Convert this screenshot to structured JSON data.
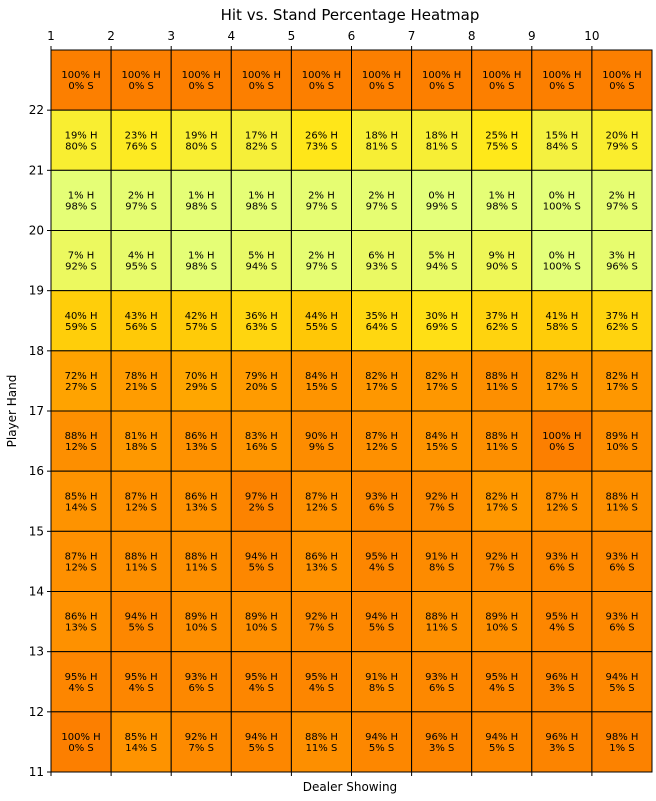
{
  "chart_data": {
    "type": "heatmap",
    "title": "Hit vs. Stand Percentage Heatmap",
    "xlabel": "Dealer Showing",
    "ylabel": "Player Hand",
    "x_ticks": [
      "1",
      "2",
      "3",
      "4",
      "5",
      "6",
      "7",
      "8",
      "9",
      "10"
    ],
    "y_ticks": [
      "22",
      "21",
      "20",
      "19",
      "18",
      "17",
      "16",
      "15",
      "14",
      "13",
      "12",
      "11"
    ],
    "x_range": [
      1,
      11
    ],
    "y_range": [
      11,
      23
    ],
    "colormap": "Wistia",
    "value_range": [
      0,
      100
    ],
    "rows": [
      {
        "cells": [
          {
            "hit": 100,
            "stand": 0,
            "hit_label": "100% H",
            "stand_label": "0% S"
          },
          {
            "hit": 100,
            "stand": 0,
            "hit_label": "100% H",
            "stand_label": "0% S"
          },
          {
            "hit": 100,
            "stand": 0,
            "hit_label": "100% H",
            "stand_label": "0% S"
          },
          {
            "hit": 100,
            "stand": 0,
            "hit_label": "100% H",
            "stand_label": "0% S"
          },
          {
            "hit": 100,
            "stand": 0,
            "hit_label": "100% H",
            "stand_label": "0% S"
          },
          {
            "hit": 100,
            "stand": 0,
            "hit_label": "100% H",
            "stand_label": "0% S"
          },
          {
            "hit": 100,
            "stand": 0,
            "hit_label": "100% H",
            "stand_label": "0% S"
          },
          {
            "hit": 100,
            "stand": 0,
            "hit_label": "100% H",
            "stand_label": "0% S"
          },
          {
            "hit": 100,
            "stand": 0,
            "hit_label": "100% H",
            "stand_label": "0% S"
          },
          {
            "hit": 100,
            "stand": 0,
            "hit_label": "100% H",
            "stand_label": "0% S"
          }
        ]
      },
      {
        "cells": [
          {
            "hit": 19,
            "stand": 80,
            "hit_label": "19% H",
            "stand_label": "80% S"
          },
          {
            "hit": 23,
            "stand": 76,
            "hit_label": "23% H",
            "stand_label": "76% S"
          },
          {
            "hit": 19,
            "stand": 80,
            "hit_label": "19% H",
            "stand_label": "80% S"
          },
          {
            "hit": 17,
            "stand": 82,
            "hit_label": "17% H",
            "stand_label": "82% S"
          },
          {
            "hit": 26,
            "stand": 73,
            "hit_label": "26% H",
            "stand_label": "73% S"
          },
          {
            "hit": 18,
            "stand": 81,
            "hit_label": "18% H",
            "stand_label": "81% S"
          },
          {
            "hit": 18,
            "stand": 81,
            "hit_label": "18% H",
            "stand_label": "81% S"
          },
          {
            "hit": 25,
            "stand": 75,
            "hit_label": "25% H",
            "stand_label": "75% S"
          },
          {
            "hit": 15,
            "stand": 84,
            "hit_label": "15% H",
            "stand_label": "84% S"
          },
          {
            "hit": 20,
            "stand": 79,
            "hit_label": "20% H",
            "stand_label": "79% S"
          }
        ]
      },
      {
        "cells": [
          {
            "hit": 1,
            "stand": 98,
            "hit_label": "1% H",
            "stand_label": "98% S"
          },
          {
            "hit": 2,
            "stand": 97,
            "hit_label": "2% H",
            "stand_label": "97% S"
          },
          {
            "hit": 1,
            "stand": 98,
            "hit_label": "1% H",
            "stand_label": "98% S"
          },
          {
            "hit": 1,
            "stand": 98,
            "hit_label": "1% H",
            "stand_label": "98% S"
          },
          {
            "hit": 2,
            "stand": 97,
            "hit_label": "2% H",
            "stand_label": "97% S"
          },
          {
            "hit": 2,
            "stand": 97,
            "hit_label": "2% H",
            "stand_label": "97% S"
          },
          {
            "hit": 0,
            "stand": 99,
            "hit_label": "0% H",
            "stand_label": "99% S"
          },
          {
            "hit": 1,
            "stand": 98,
            "hit_label": "1% H",
            "stand_label": "98% S"
          },
          {
            "hit": 0,
            "stand": 100,
            "hit_label": "0% H",
            "stand_label": "100% S"
          },
          {
            "hit": 2,
            "stand": 97,
            "hit_label": "2% H",
            "stand_label": "97% S"
          }
        ]
      },
      {
        "cells": [
          {
            "hit": 7,
            "stand": 92,
            "hit_label": "7% H",
            "stand_label": "92% S"
          },
          {
            "hit": 4,
            "stand": 95,
            "hit_label": "4% H",
            "stand_label": "95% S"
          },
          {
            "hit": 1,
            "stand": 98,
            "hit_label": "1% H",
            "stand_label": "98% S"
          },
          {
            "hit": 5,
            "stand": 94,
            "hit_label": "5% H",
            "stand_label": "94% S"
          },
          {
            "hit": 2,
            "stand": 97,
            "hit_label": "2% H",
            "stand_label": "97% S"
          },
          {
            "hit": 6,
            "stand": 93,
            "hit_label": "6% H",
            "stand_label": "93% S"
          },
          {
            "hit": 5,
            "stand": 94,
            "hit_label": "5% H",
            "stand_label": "94% S"
          },
          {
            "hit": 9,
            "stand": 90,
            "hit_label": "9% H",
            "stand_label": "90% S"
          },
          {
            "hit": 0,
            "stand": 100,
            "hit_label": "0% H",
            "stand_label": "100% S"
          },
          {
            "hit": 3,
            "stand": 96,
            "hit_label": "3% H",
            "stand_label": "96% S"
          }
        ]
      },
      {
        "cells": [
          {
            "hit": 40,
            "stand": 59,
            "hit_label": "40% H",
            "stand_label": "59% S"
          },
          {
            "hit": 43,
            "stand": 56,
            "hit_label": "43% H",
            "stand_label": "56% S"
          },
          {
            "hit": 42,
            "stand": 57,
            "hit_label": "42% H",
            "stand_label": "57% S"
          },
          {
            "hit": 36,
            "stand": 63,
            "hit_label": "36% H",
            "stand_label": "63% S"
          },
          {
            "hit": 44,
            "stand": 55,
            "hit_label": "44% H",
            "stand_label": "55% S"
          },
          {
            "hit": 35,
            "stand": 64,
            "hit_label": "35% H",
            "stand_label": "64% S"
          },
          {
            "hit": 30,
            "stand": 69,
            "hit_label": "30% H",
            "stand_label": "69% S"
          },
          {
            "hit": 37,
            "stand": 62,
            "hit_label": "37% H",
            "stand_label": "62% S"
          },
          {
            "hit": 41,
            "stand": 58,
            "hit_label": "41% H",
            "stand_label": "58% S"
          },
          {
            "hit": 37,
            "stand": 62,
            "hit_label": "37% H",
            "stand_label": "62% S"
          }
        ]
      },
      {
        "cells": [
          {
            "hit": 72,
            "stand": 27,
            "hit_label": "72% H",
            "stand_label": "27% S"
          },
          {
            "hit": 78,
            "stand": 21,
            "hit_label": "78% H",
            "stand_label": "21% S"
          },
          {
            "hit": 70,
            "stand": 29,
            "hit_label": "70% H",
            "stand_label": "29% S"
          },
          {
            "hit": 79,
            "stand": 20,
            "hit_label": "79% H",
            "stand_label": "20% S"
          },
          {
            "hit": 84,
            "stand": 15,
            "hit_label": "84% H",
            "stand_label": "15% S"
          },
          {
            "hit": 82,
            "stand": 17,
            "hit_label": "82% H",
            "stand_label": "17% S"
          },
          {
            "hit": 82,
            "stand": 17,
            "hit_label": "82% H",
            "stand_label": "17% S"
          },
          {
            "hit": 88,
            "stand": 11,
            "hit_label": "88% H",
            "stand_label": "11% S"
          },
          {
            "hit": 82,
            "stand": 17,
            "hit_label": "82% H",
            "stand_label": "17% S"
          },
          {
            "hit": 82,
            "stand": 17,
            "hit_label": "82% H",
            "stand_label": "17% S"
          }
        ]
      },
      {
        "cells": [
          {
            "hit": 88,
            "stand": 12,
            "hit_label": "88% H",
            "stand_label": "12% S"
          },
          {
            "hit": 81,
            "stand": 18,
            "hit_label": "81% H",
            "stand_label": "18% S"
          },
          {
            "hit": 86,
            "stand": 13,
            "hit_label": "86% H",
            "stand_label": "13% S"
          },
          {
            "hit": 83,
            "stand": 16,
            "hit_label": "83% H",
            "stand_label": "16% S"
          },
          {
            "hit": 90,
            "stand": 9,
            "hit_label": "90% H",
            "stand_label": "9% S"
          },
          {
            "hit": 87,
            "stand": 12,
            "hit_label": "87% H",
            "stand_label": "12% S"
          },
          {
            "hit": 84,
            "stand": 15,
            "hit_label": "84% H",
            "stand_label": "15% S"
          },
          {
            "hit": 88,
            "stand": 11,
            "hit_label": "88% H",
            "stand_label": "11% S"
          },
          {
            "hit": 100,
            "stand": 0,
            "hit_label": "100% H",
            "stand_label": "0% S"
          },
          {
            "hit": 89,
            "stand": 10,
            "hit_label": "89% H",
            "stand_label": "10% S"
          }
        ]
      },
      {
        "cells": [
          {
            "hit": 85,
            "stand": 14,
            "hit_label": "85% H",
            "stand_label": "14% S"
          },
          {
            "hit": 87,
            "stand": 12,
            "hit_label": "87% H",
            "stand_label": "12% S"
          },
          {
            "hit": 86,
            "stand": 13,
            "hit_label": "86% H",
            "stand_label": "13% S"
          },
          {
            "hit": 97,
            "stand": 2,
            "hit_label": "97% H",
            "stand_label": "2% S"
          },
          {
            "hit": 87,
            "stand": 12,
            "hit_label": "87% H",
            "stand_label": "12% S"
          },
          {
            "hit": 93,
            "stand": 6,
            "hit_label": "93% H",
            "stand_label": "6% S"
          },
          {
            "hit": 92,
            "stand": 7,
            "hit_label": "92% H",
            "stand_label": "7% S"
          },
          {
            "hit": 82,
            "stand": 17,
            "hit_label": "82% H",
            "stand_label": "17% S"
          },
          {
            "hit": 87,
            "stand": 12,
            "hit_label": "87% H",
            "stand_label": "12% S"
          },
          {
            "hit": 88,
            "stand": 11,
            "hit_label": "88% H",
            "stand_label": "11% S"
          }
        ]
      },
      {
        "cells": [
          {
            "hit": 87,
            "stand": 12,
            "hit_label": "87% H",
            "stand_label": "12% S"
          },
          {
            "hit": 88,
            "stand": 11,
            "hit_label": "88% H",
            "stand_label": "11% S"
          },
          {
            "hit": 88,
            "stand": 11,
            "hit_label": "88% H",
            "stand_label": "11% S"
          },
          {
            "hit": 94,
            "stand": 5,
            "hit_label": "94% H",
            "stand_label": "5% S"
          },
          {
            "hit": 86,
            "stand": 13,
            "hit_label": "86% H",
            "stand_label": "13% S"
          },
          {
            "hit": 95,
            "stand": 4,
            "hit_label": "95% H",
            "stand_label": "4% S"
          },
          {
            "hit": 91,
            "stand": 8,
            "hit_label": "91% H",
            "stand_label": "8% S"
          },
          {
            "hit": 92,
            "stand": 7,
            "hit_label": "92% H",
            "stand_label": "7% S"
          },
          {
            "hit": 93,
            "stand": 6,
            "hit_label": "93% H",
            "stand_label": "6% S"
          },
          {
            "hit": 93,
            "stand": 6,
            "hit_label": "93% H",
            "stand_label": "6% S"
          }
        ]
      },
      {
        "cells": [
          {
            "hit": 86,
            "stand": 13,
            "hit_label": "86% H",
            "stand_label": "13% S"
          },
          {
            "hit": 94,
            "stand": 5,
            "hit_label": "94% H",
            "stand_label": "5% S"
          },
          {
            "hit": 89,
            "stand": 10,
            "hit_label": "89% H",
            "stand_label": "10% S"
          },
          {
            "hit": 89,
            "stand": 10,
            "hit_label": "89% H",
            "stand_label": "10% S"
          },
          {
            "hit": 92,
            "stand": 7,
            "hit_label": "92% H",
            "stand_label": "7% S"
          },
          {
            "hit": 94,
            "stand": 5,
            "hit_label": "94% H",
            "stand_label": "5% S"
          },
          {
            "hit": 88,
            "stand": 11,
            "hit_label": "88% H",
            "stand_label": "11% S"
          },
          {
            "hit": 89,
            "stand": 10,
            "hit_label": "89% H",
            "stand_label": "10% S"
          },
          {
            "hit": 95,
            "stand": 4,
            "hit_label": "95% H",
            "stand_label": "4% S"
          },
          {
            "hit": 93,
            "stand": 6,
            "hit_label": "93% H",
            "stand_label": "6% S"
          }
        ]
      },
      {
        "cells": [
          {
            "hit": 95,
            "stand": 4,
            "hit_label": "95% H",
            "stand_label": "4% S"
          },
          {
            "hit": 95,
            "stand": 4,
            "hit_label": "95% H",
            "stand_label": "4% S"
          },
          {
            "hit": 93,
            "stand": 6,
            "hit_label": "93% H",
            "stand_label": "6% S"
          },
          {
            "hit": 95,
            "stand": 4,
            "hit_label": "95% H",
            "stand_label": "4% S"
          },
          {
            "hit": 95,
            "stand": 4,
            "hit_label": "95% H",
            "stand_label": "4% S"
          },
          {
            "hit": 91,
            "stand": 8,
            "hit_label": "91% H",
            "stand_label": "8% S"
          },
          {
            "hit": 93,
            "stand": 6,
            "hit_label": "93% H",
            "stand_label": "6% S"
          },
          {
            "hit": 95,
            "stand": 4,
            "hit_label": "95% H",
            "stand_label": "4% S"
          },
          {
            "hit": 96,
            "stand": 3,
            "hit_label": "96% H",
            "stand_label": "3% S"
          },
          {
            "hit": 94,
            "stand": 5,
            "hit_label": "94% H",
            "stand_label": "5% S"
          }
        ]
      },
      {
        "cells": [
          {
            "hit": 100,
            "stand": 0,
            "hit_label": "100% H",
            "stand_label": "0% S"
          },
          {
            "hit": 85,
            "stand": 14,
            "hit_label": "85% H",
            "stand_label": "14% S"
          },
          {
            "hit": 92,
            "stand": 7,
            "hit_label": "92% H",
            "stand_label": "7% S"
          },
          {
            "hit": 94,
            "stand": 5,
            "hit_label": "94% H",
            "stand_label": "5% S"
          },
          {
            "hit": 88,
            "stand": 11,
            "hit_label": "88% H",
            "stand_label": "11% S"
          },
          {
            "hit": 94,
            "stand": 5,
            "hit_label": "94% H",
            "stand_label": "5% S"
          },
          {
            "hit": 96,
            "stand": 3,
            "hit_label": "96% H",
            "stand_label": "3% S"
          },
          {
            "hit": 94,
            "stand": 5,
            "hit_label": "94% H",
            "stand_label": "5% S"
          },
          {
            "hit": 96,
            "stand": 3,
            "hit_label": "96% H",
            "stand_label": "3% S"
          },
          {
            "hit": 98,
            "stand": 1,
            "hit_label": "98% H",
            "stand_label": "1% S"
          }
        ]
      }
    ]
  }
}
